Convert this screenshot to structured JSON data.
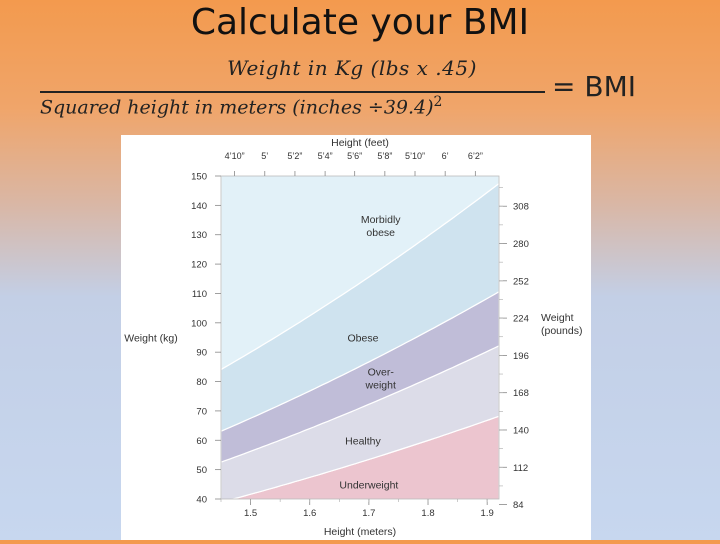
{
  "slide": {
    "title": "Calculate your BMI",
    "formula_numerator": "Weight in Kg (lbs x .45)",
    "formula_denominator": "Squared height in meters (inches ÷39.4)",
    "formula_exponent": "2",
    "formula_result": "= BMI"
  },
  "chart_data": {
    "type": "area",
    "title": "",
    "x_top_label": "Height (feet)",
    "x_top_ticks": [
      "4’10”",
      "5’",
      "5’2”",
      "5’4”",
      "5’6”",
      "5’8”",
      "5’10”",
      "6’",
      "6’2”"
    ],
    "x_top_values_m": [
      1.473,
      1.524,
      1.575,
      1.626,
      1.676,
      1.727,
      1.778,
      1.829,
      1.88
    ],
    "xlabel": "Height (meters)",
    "x_ticks": [
      1.5,
      1.6,
      1.7,
      1.8,
      1.9
    ],
    "x_tick_labels": [
      "1.5",
      "1.6",
      "1.7",
      "1.8",
      "1.9"
    ],
    "xlim": [
      1.45,
      1.92
    ],
    "ylabel": "Weight (kg)",
    "y_ticks": [
      40,
      50,
      60,
      70,
      80,
      90,
      100,
      110,
      120,
      130,
      140,
      150
    ],
    "y_tick_labels": [
      "40",
      "50",
      "60",
      "70",
      "80",
      "90",
      "100",
      "110",
      "120",
      "130",
      "140",
      "150"
    ],
    "ylim": [
      40,
      150
    ],
    "y_right_label_line1": "Weight",
    "y_right_label_line2": "(pounds)",
    "y_right_ticks": [
      84,
      112,
      140,
      168,
      196,
      224,
      252,
      280,
      308
    ],
    "y_right_tick_labels": [
      "84",
      "112",
      "140",
      "168",
      "196",
      "224",
      "252",
      "280",
      "308"
    ],
    "kg_per_lb": 0.4536,
    "boundaries_bmi": [
      18.5,
      25,
      30,
      40
    ],
    "regions": [
      {
        "label": "Underweight",
        "color": "#ecc5cf",
        "label_h": 1.7,
        "label_w": 45
      },
      {
        "label": "Healthy",
        "color": "#dcdce8",
        "label_h": 1.69,
        "label_w": 60
      },
      {
        "label": "Over-",
        "label2": "weight",
        "color": "#c0bdd8",
        "label_h": 1.72,
        "label_w": 80
      },
      {
        "label": "Obese",
        "color": "#cfe3ef",
        "label_h": 1.69,
        "label_w": 95
      },
      {
        "label": "Morbidly",
        "label2": "obese",
        "color": "#e2f1f8",
        "label_h": 1.72,
        "label_w": 132
      }
    ]
  }
}
